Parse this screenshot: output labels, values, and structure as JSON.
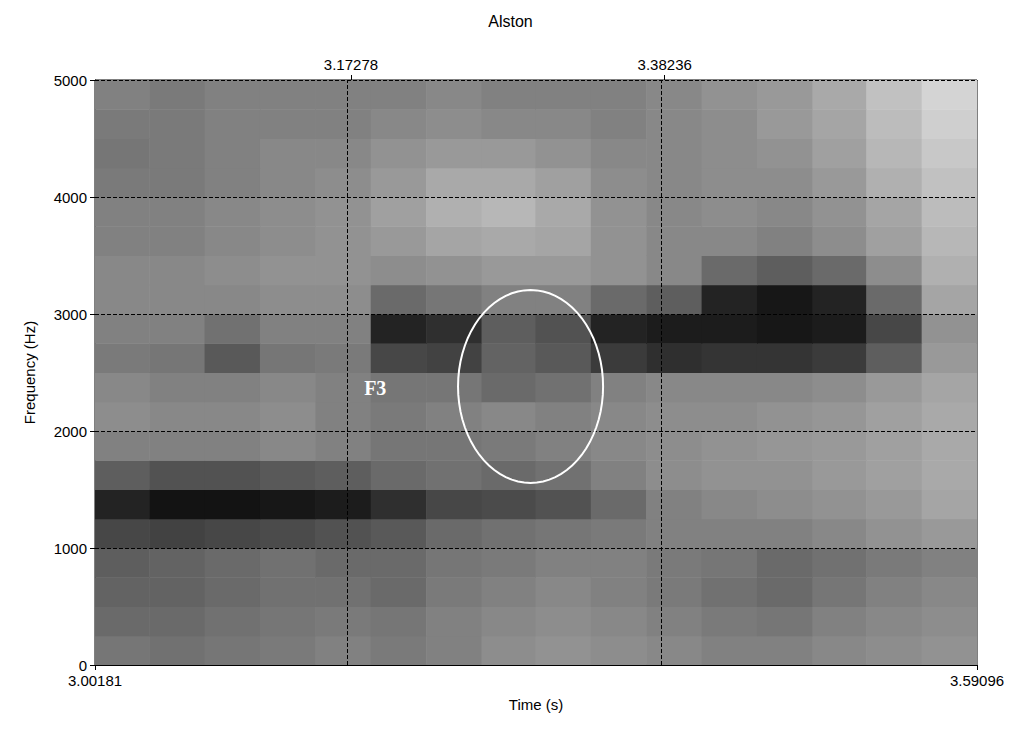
{
  "chart_data": {
    "type": "heatmap",
    "title": "Alston",
    "x_label": "Time (s)",
    "y_label": "Frequency (Hz)",
    "xlim": [
      3.00181,
      3.59096
    ],
    "xticks": [
      3.00181,
      3.59096
    ],
    "x2ticks": [
      3.17278,
      3.38236
    ],
    "ylim": [
      0,
      5000
    ],
    "yticks": [
      0,
      1000,
      2000,
      3000,
      4000,
      5000
    ],
    "grid": true,
    "annotations": [
      {
        "text": "F3",
        "x": 3.189,
        "y": 2368
      }
    ],
    "ellipse": {
      "x": [
        3.2443,
        3.3412
      ],
      "y": [
        1556,
        3205
      ]
    },
    "color_range": [
      0,
      100
    ],
    "x_bins": [
      3.00181,
      3.038,
      3.075,
      3.112,
      3.149,
      3.186,
      3.223,
      3.26,
      3.296,
      3.333,
      3.37,
      3.407,
      3.444,
      3.481,
      3.517,
      3.554,
      3.59096
    ],
    "y_bins": [
      0,
      250,
      500,
      750,
      1000,
      1250,
      1500,
      1750,
      2000,
      2250,
      2500,
      2750,
      3000,
      3250,
      3500,
      3750,
      4000,
      4250,
      4500,
      4750,
      5000
    ],
    "cells": [
      [
        50,
        52,
        50,
        48,
        45,
        48,
        45,
        40,
        38,
        40,
        42,
        45,
        45,
        42,
        40,
        38
      ],
      [
        55,
        55,
        52,
        50,
        48,
        50,
        45,
        42,
        40,
        42,
        45,
        48,
        50,
        45,
        42,
        40
      ],
      [
        58,
        58,
        55,
        52,
        52,
        55,
        48,
        45,
        42,
        45,
        48,
        52,
        55,
        50,
        45,
        42
      ],
      [
        60,
        58,
        55,
        52,
        55,
        55,
        50,
        48,
        45,
        45,
        48,
        50,
        55,
        52,
        48,
        45
      ],
      [
        70,
        72,
        70,
        68,
        65,
        62,
        55,
        52,
        50,
        48,
        45,
        45,
        45,
        42,
        38,
        35
      ],
      [
        85,
        92,
        92,
        90,
        88,
        80,
        70,
        68,
        65,
        55,
        45,
        42,
        40,
        38,
        35,
        30
      ],
      [
        60,
        65,
        65,
        62,
        60,
        55,
        52,
        55,
        52,
        45,
        40,
        38,
        38,
        35,
        32,
        28
      ],
      [
        45,
        45,
        45,
        42,
        45,
        50,
        50,
        48,
        45,
        42,
        40,
        38,
        36,
        35,
        32,
        28
      ],
      [
        40,
        42,
        42,
        40,
        45,
        48,
        45,
        42,
        45,
        42,
        40,
        40,
        38,
        36,
        32,
        28
      ],
      [
        42,
        45,
        45,
        42,
        45,
        50,
        50,
        55,
        52,
        45,
        42,
        42,
        42,
        40,
        35,
        30
      ],
      [
        48,
        50,
        62,
        50,
        48,
        70,
        72,
        58,
        62,
        75,
        80,
        78,
        78,
        75,
        60,
        35
      ],
      [
        45,
        45,
        52,
        45,
        45,
        85,
        80,
        60,
        65,
        85,
        88,
        88,
        90,
        88,
        70,
        38
      ],
      [
        42,
        42,
        42,
        40,
        40,
        55,
        50,
        45,
        45,
        55,
        60,
        85,
        90,
        85,
        55,
        30
      ],
      [
        42,
        42,
        40,
        38,
        38,
        40,
        38,
        35,
        35,
        38,
        42,
        55,
        60,
        55,
        40,
        25
      ],
      [
        45,
        45,
        42,
        40,
        38,
        35,
        30,
        28,
        30,
        38,
        42,
        42,
        45,
        40,
        32,
        22
      ],
      [
        45,
        45,
        42,
        40,
        38,
        32,
        25,
        22,
        28,
        38,
        42,
        40,
        42,
        38,
        30,
        20
      ],
      [
        48,
        48,
        45,
        42,
        40,
        35,
        28,
        28,
        32,
        40,
        42,
        40,
        40,
        35,
        25,
        18
      ],
      [
        50,
        48,
        45,
        42,
        42,
        38,
        35,
        35,
        38,
        42,
        42,
        40,
        38,
        32,
        22,
        15
      ],
      [
        48,
        48,
        45,
        45,
        45,
        42,
        40,
        42,
        42,
        45,
        42,
        40,
        35,
        30,
        20,
        12
      ],
      [
        45,
        48,
        45,
        45,
        45,
        45,
        42,
        45,
        45,
        45,
        42,
        38,
        35,
        28,
        18,
        10
      ]
    ]
  }
}
